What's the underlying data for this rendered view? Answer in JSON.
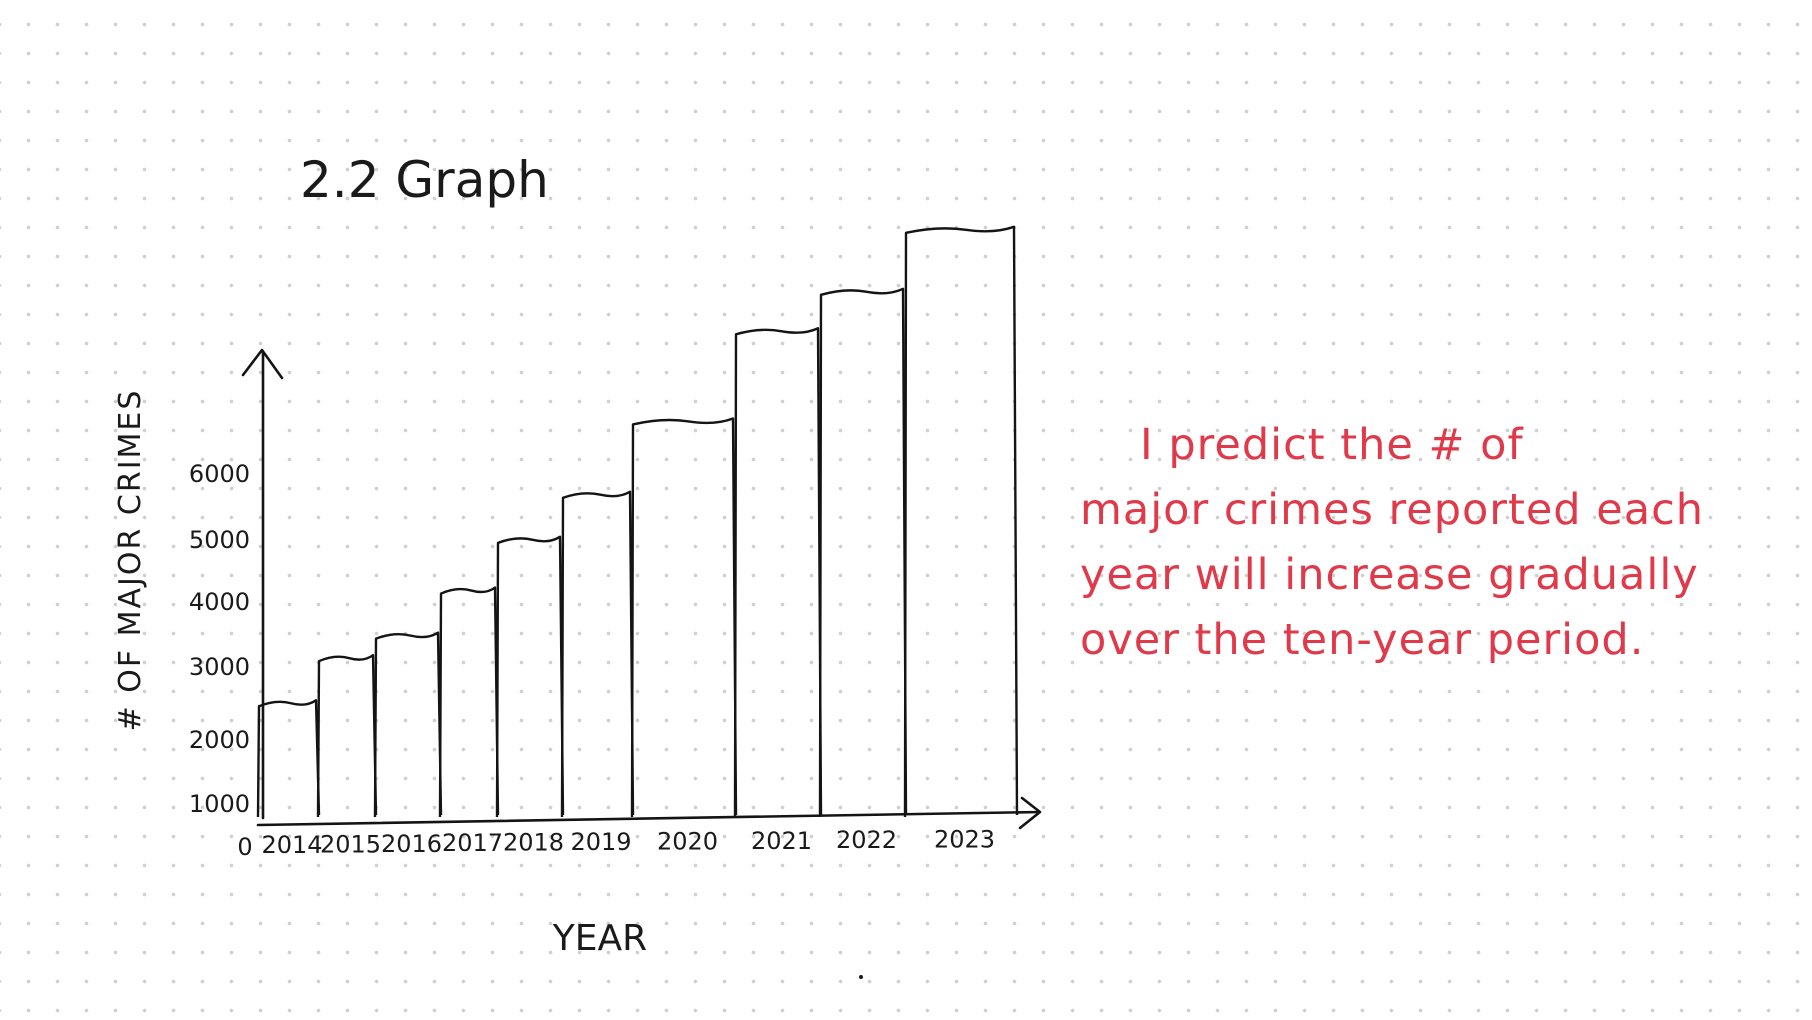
{
  "chart_data": {
    "type": "bar",
    "title": "2.2 Graph",
    "xlabel": "YEAR",
    "ylabel": "# OF MAJOR CRIMES",
    "categories": [
      "2014",
      "2015",
      "2016",
      "2017",
      "2018",
      "2019",
      "2020",
      "2021",
      "2022",
      "2023"
    ],
    "values": [
      2000,
      2800,
      3200,
      4000,
      4900,
      5700,
      7000,
      8600,
      9300,
      10400
    ],
    "y_ticks": [
      "1000",
      "2000",
      "3000",
      "4000",
      "5000",
      "6000"
    ],
    "origin_label": "0",
    "ylim": [
      0,
      11000
    ],
    "grid": false
  },
  "annotation": {
    "lines": [
      "I predict the # of",
      "major crimes reported each",
      "year will increase gradually",
      "over the ten-year period."
    ]
  },
  "colors": {
    "ink": "#141414",
    "annotation": "#e0394a",
    "dots": "#cfcfcf"
  }
}
